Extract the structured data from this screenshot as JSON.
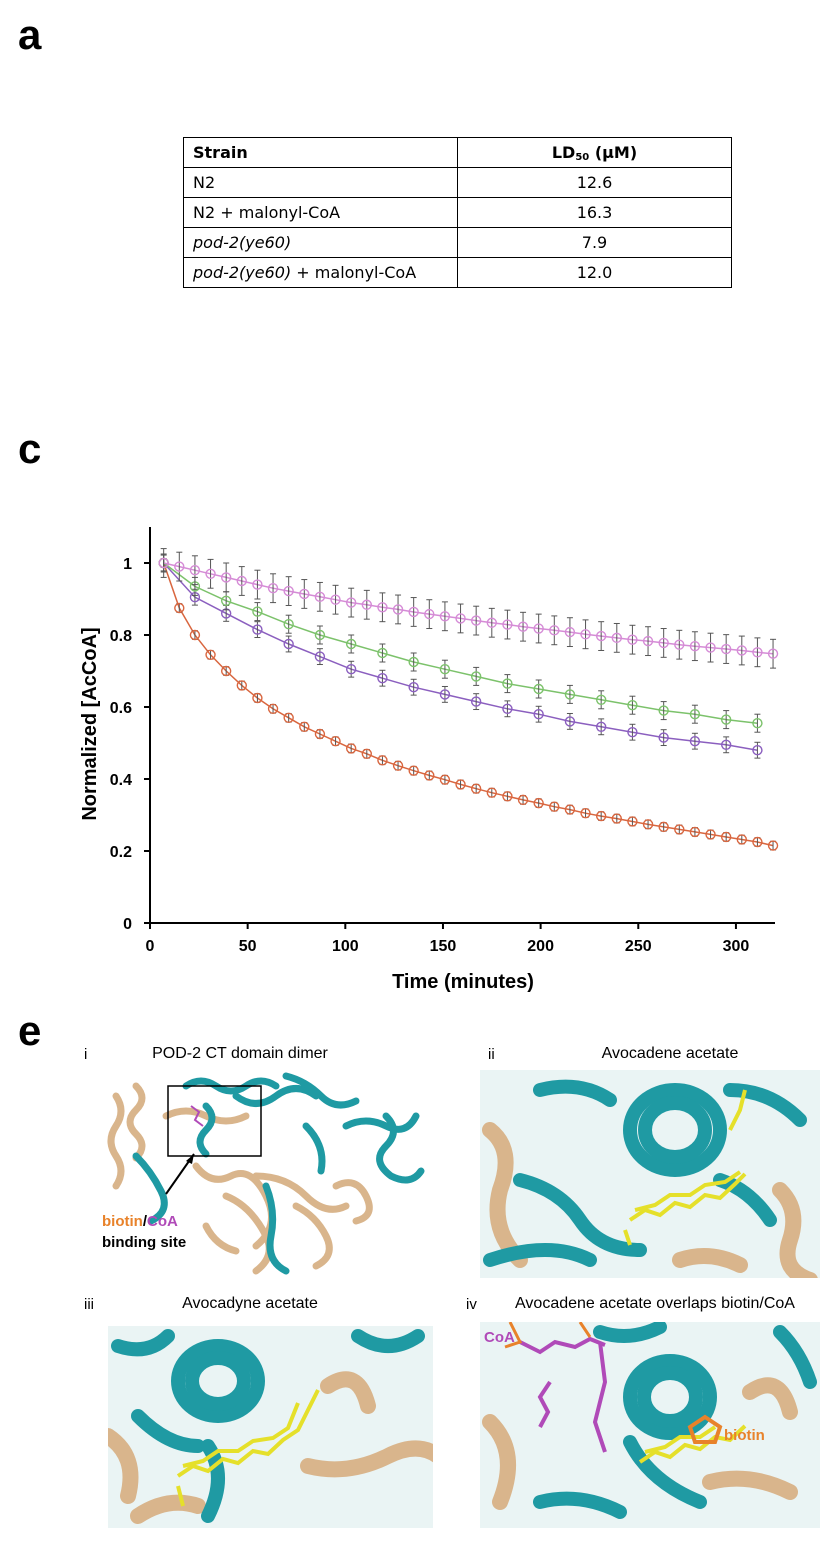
{
  "panels": {
    "a": "a",
    "c": "c",
    "e": "e"
  },
  "table": {
    "headers": {
      "strain": "Strain",
      "ld50_main": "LD",
      "ld50_sub": "50",
      "ld50_unit": " (μM)"
    },
    "rows": [
      {
        "strain": "N2",
        "suffix": "",
        "value": "12.6"
      },
      {
        "strain": "N2 + malonyl-CoA",
        "suffix": "",
        "value": "16.3"
      },
      {
        "strain": "pod-2(ye60)",
        "suffix": "",
        "value": "7.9"
      },
      {
        "strain": "pod-2(ye60)",
        "suffix": " + malonyl-CoA",
        "value": "12.0"
      }
    ]
  },
  "chart_data": {
    "type": "line",
    "xlabel": "Time (minutes)",
    "ylabel": "Normalized [AcCoA]",
    "xlim": [
      0,
      320
    ],
    "ylim": [
      0,
      1.1
    ],
    "xticks": [
      0,
      50,
      100,
      150,
      200,
      250,
      300
    ],
    "yticks": [
      0,
      0.2,
      0.4,
      0.6,
      0.8,
      1
    ],
    "grid": false,
    "legend": "none",
    "series": [
      {
        "color": "#d9663f",
        "markers": "open-circle",
        "x": [
          7,
          15,
          23,
          31,
          39,
          47,
          55,
          63,
          71,
          79,
          87,
          95,
          103,
          111,
          119,
          127,
          135,
          143,
          151,
          159,
          167,
          175,
          183,
          191,
          199,
          207,
          215,
          223,
          231,
          239,
          247,
          255,
          263,
          271,
          279,
          287,
          295,
          303,
          311,
          319
        ],
        "y": [
          1.0,
          0.875,
          0.8,
          0.745,
          0.7,
          0.66,
          0.625,
          0.595,
          0.57,
          0.545,
          0.525,
          0.505,
          0.485,
          0.47,
          0.452,
          0.437,
          0.423,
          0.41,
          0.398,
          0.385,
          0.373,
          0.362,
          0.352,
          0.342,
          0.333,
          0.323,
          0.315,
          0.305,
          0.297,
          0.29,
          0.282,
          0.274,
          0.267,
          0.26,
          0.253,
          0.246,
          0.239,
          0.232,
          0.225,
          0.215
        ],
        "err": 0.012
      },
      {
        "color": "#8b5fbf",
        "markers": "open-circle",
        "x": [
          7,
          23,
          39,
          55,
          71,
          87,
          103,
          119,
          135,
          151,
          167,
          183,
          199,
          215,
          231,
          247,
          263,
          279,
          295,
          311
        ],
        "y": [
          1.0,
          0.905,
          0.86,
          0.815,
          0.775,
          0.74,
          0.705,
          0.68,
          0.655,
          0.635,
          0.615,
          0.595,
          0.58,
          0.56,
          0.545,
          0.53,
          0.515,
          0.505,
          0.495,
          0.48
        ],
        "err": 0.022
      },
      {
        "color": "#7cc26b",
        "markers": "open-circle",
        "x": [
          7,
          23,
          39,
          55,
          71,
          87,
          103,
          119,
          135,
          151,
          167,
          183,
          199,
          215,
          231,
          247,
          263,
          279,
          295,
          311
        ],
        "y": [
          1.0,
          0.935,
          0.895,
          0.865,
          0.83,
          0.8,
          0.775,
          0.75,
          0.725,
          0.705,
          0.685,
          0.665,
          0.65,
          0.635,
          0.62,
          0.605,
          0.59,
          0.58,
          0.565,
          0.555
        ],
        "err": 0.025
      },
      {
        "color": "#d58bd6",
        "markers": "open-circle",
        "x": [
          7,
          15,
          23,
          31,
          39,
          47,
          55,
          63,
          71,
          79,
          87,
          95,
          103,
          111,
          119,
          127,
          135,
          143,
          151,
          159,
          167,
          175,
          183,
          191,
          199,
          207,
          215,
          223,
          231,
          239,
          247,
          255,
          263,
          271,
          279,
          287,
          295,
          303,
          311,
          319
        ],
        "y": [
          1.0,
          0.99,
          0.98,
          0.97,
          0.96,
          0.95,
          0.94,
          0.93,
          0.922,
          0.914,
          0.906,
          0.898,
          0.89,
          0.884,
          0.877,
          0.871,
          0.864,
          0.858,
          0.852,
          0.846,
          0.84,
          0.834,
          0.829,
          0.823,
          0.818,
          0.813,
          0.808,
          0.802,
          0.797,
          0.792,
          0.787,
          0.783,
          0.778,
          0.773,
          0.769,
          0.765,
          0.761,
          0.757,
          0.752,
          0.748
        ],
        "err": 0.04
      }
    ]
  },
  "structures": {
    "i": {
      "label": "i",
      "title": "POD-2 CT domain dimer",
      "annot_biotin": "biotin",
      "annot_slash": "/",
      "annot_coa": "CoA",
      "annot_site": "binding site"
    },
    "ii": {
      "label": "ii",
      "title": "Avocadene acetate"
    },
    "iii": {
      "label": "iii",
      "title": "Avocadyne acetate"
    },
    "iv": {
      "label": "iv",
      "title": "Avocadene acetate overlaps biotin/CoA",
      "annot_coa": "CoA",
      "annot_biotin": "biotin"
    }
  },
  "colors": {
    "teal": "#1f9aa3",
    "tan": "#d9b58c",
    "yellow": "#e5e02a",
    "magenta": "#b04ab8",
    "orange": "#e8822a"
  }
}
